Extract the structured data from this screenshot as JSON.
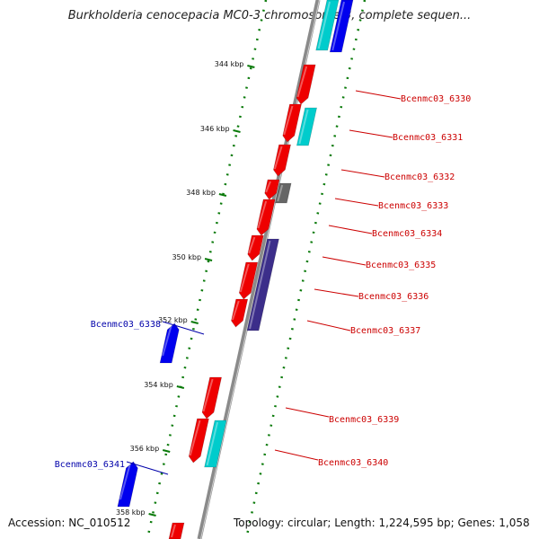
{
  "title": "Burkholderia cenocepacia MC0-3 chromosome 3, complete sequen...",
  "footer": {
    "accession": "Accession: NC_010512",
    "topology": "Topology: circular; Length: 1,224,595 bp; Genes: 1,058"
  },
  "colors": {
    "backbone": "#8a8a8a",
    "tick": "#0a7a0a",
    "plus_gene": "#ee0000",
    "minus_gene": "#0000ee",
    "cyan_gene": "#00cccc",
    "gray_gene": "#666666",
    "purple_gene": "#3c2e8a",
    "label_red": "#cc0000",
    "label_blue": "#0000aa"
  },
  "kbp_ticks": [
    {
      "label": "344 kbp"
    },
    {
      "label": "346 kbp"
    },
    {
      "label": "348 kbp"
    },
    {
      "label": "350 kbp"
    },
    {
      "label": "352 kbp"
    },
    {
      "label": "354 kbp"
    },
    {
      "label": "356 kbp"
    },
    {
      "label": "358 kbp"
    }
  ],
  "genes": [
    {
      "name": "Bcenmc03_6330",
      "strand": "plus"
    },
    {
      "name": "Bcenmc03_6331",
      "strand": "plus"
    },
    {
      "name": "Bcenmc03_6332",
      "strand": "plus"
    },
    {
      "name": "Bcenmc03_6333",
      "strand": "plus"
    },
    {
      "name": "Bcenmc03_6334",
      "strand": "plus"
    },
    {
      "name": "Bcenmc03_6335",
      "strand": "plus"
    },
    {
      "name": "Bcenmc03_6336",
      "strand": "plus"
    },
    {
      "name": "Bcenmc03_6337",
      "strand": "plus"
    },
    {
      "name": "Bcenmc03_6338",
      "strand": "minus"
    },
    {
      "name": "Bcenmc03_6339",
      "strand": "plus"
    },
    {
      "name": "Bcenmc03_6340",
      "strand": "plus"
    },
    {
      "name": "Bcenmc03_6341",
      "strand": "minus"
    }
  ]
}
